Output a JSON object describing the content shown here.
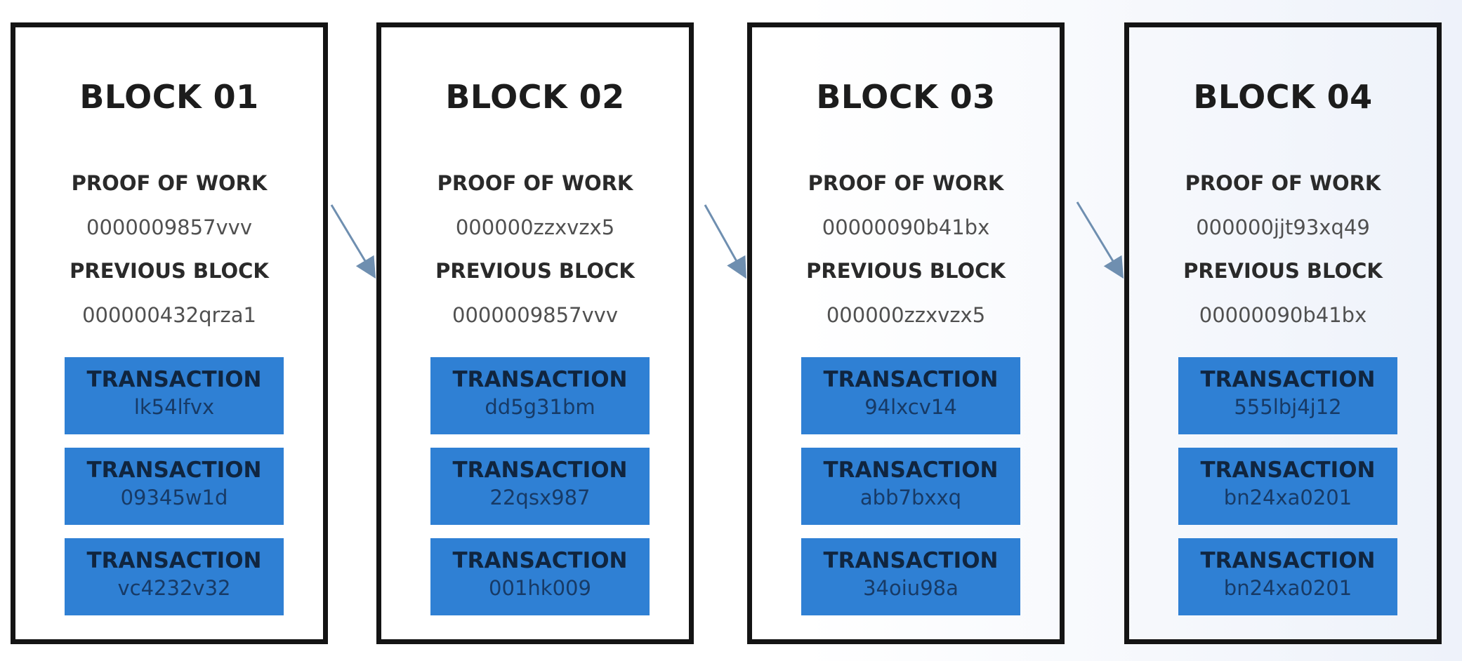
{
  "blocks": [
    {
      "title": "BLOCK 01",
      "proof_label": "PROOF OF WORK",
      "proof_value": "0000009857vvv",
      "prev_label": "PREVIOUS BLOCK",
      "prev_value": "000000432qrza1",
      "transactions": [
        {
          "label": "TRANSACTION",
          "id": "lk54lfvx"
        },
        {
          "label": "TRANSACTION",
          "id": "09345w1d"
        },
        {
          "label": "TRANSACTION",
          "id": "vc4232v32"
        }
      ]
    },
    {
      "title": "BLOCK 02",
      "proof_label": "PROOF OF WORK",
      "proof_value": "000000zzxvzx5",
      "prev_label": "PREVIOUS BLOCK",
      "prev_value": "0000009857vvv",
      "transactions": [
        {
          "label": "TRANSACTION",
          "id": "dd5g31bm"
        },
        {
          "label": "TRANSACTION",
          "id": "22qsx987"
        },
        {
          "label": "TRANSACTION",
          "id": "001hk009"
        }
      ]
    },
    {
      "title": "BLOCK 03",
      "proof_label": "PROOF OF WORK",
      "proof_value": "00000090b41bx",
      "prev_label": "PREVIOUS BLOCK",
      "prev_value": "000000zzxvzx5",
      "transactions": [
        {
          "label": "TRANSACTION",
          "id": "94lxcv14"
        },
        {
          "label": "TRANSACTION",
          "id": "abb7bxxq"
        },
        {
          "label": "TRANSACTION",
          "id": "34oiu98a"
        }
      ]
    },
    {
      "title": "BLOCK 04",
      "proof_label": "PROOF OF WORK",
      "proof_value": "000000jjt93xq49",
      "prev_label": "PREVIOUS BLOCK",
      "prev_value": "00000090b41bx",
      "transactions": [
        {
          "label": "TRANSACTION",
          "id": "555lbj4j12"
        },
        {
          "label": "TRANSACTION",
          "id": "bn24xa0201"
        },
        {
          "label": "TRANSACTION",
          "id": "bn24xa0201"
        }
      ]
    }
  ],
  "colors": {
    "border": "#141414",
    "transaction_fill": "#2f80d4",
    "arrow": "#6f8fb0"
  }
}
